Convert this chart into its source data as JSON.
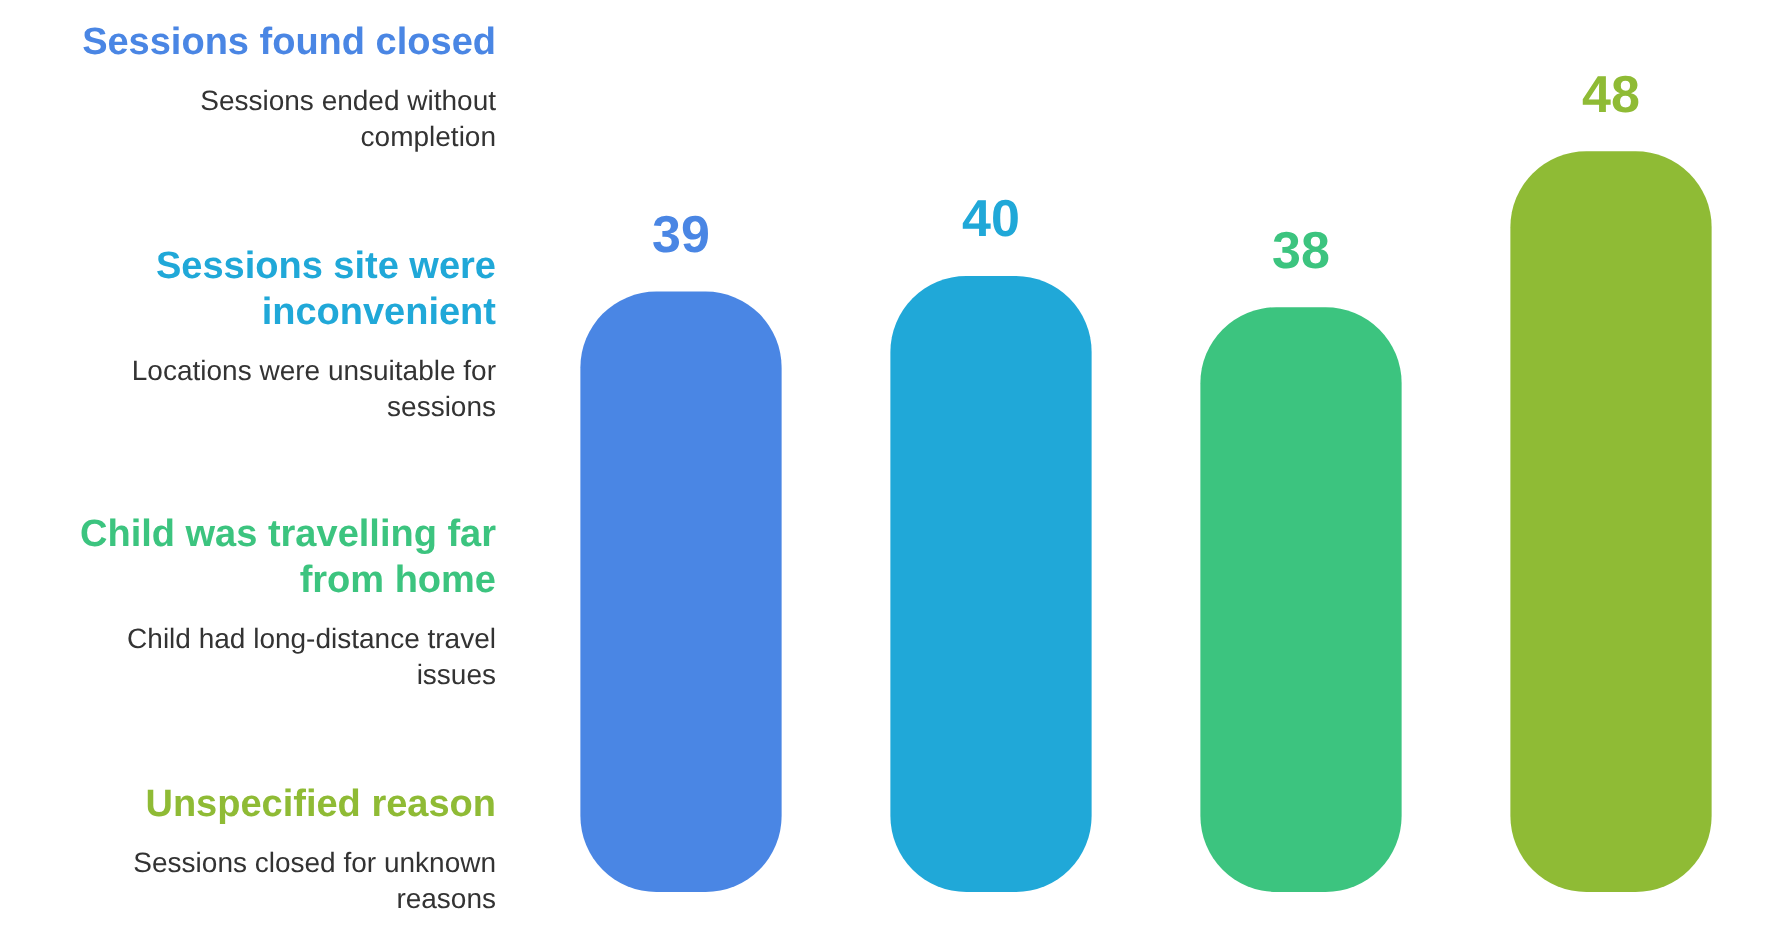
{
  "chart_data": {
    "type": "bar",
    "categories": [
      null,
      null,
      null,
      null
    ],
    "values": [
      39,
      40,
      38,
      48
    ],
    "colors": [
      "#4a86e4",
      "#20a8d8",
      "#3cc47f",
      "#8fbb35"
    ],
    "annotations": [
      "Sessions found closed",
      "Sessions ended without completion",
      "Sessions site were inconvenient",
      "Locations were unsuitable for sessions",
      "Child was travelling far from home",
      "Child had long-distance travel issues",
      "Unspecified reason",
      "Sessions closed for unknown reasons"
    ],
    "data_labels": true
  }
}
